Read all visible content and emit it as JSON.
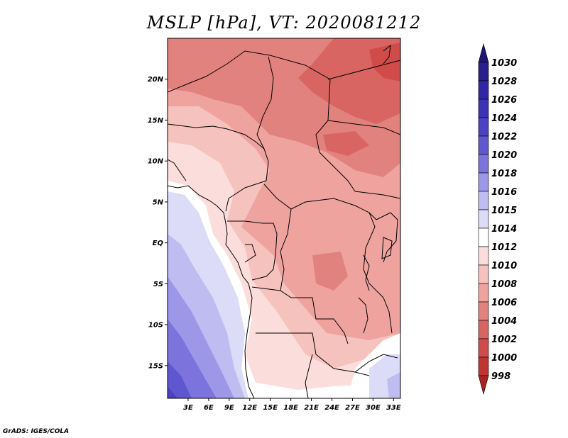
{
  "title": "MSLP [hPa], VT: 2020081212",
  "credit": "GrADS: IGES/COLA",
  "map": {
    "lon_range": [
      0,
      34
    ],
    "lat_range": [
      -19,
      25
    ],
    "lat_ticks": [
      {
        "value": 20,
        "label": "20N"
      },
      {
        "value": 15,
        "label": "15N"
      },
      {
        "value": 10,
        "label": "10N"
      },
      {
        "value": 5,
        "label": "5N"
      },
      {
        "value": 0,
        "label": "EQ"
      },
      {
        "value": -5,
        "label": "5S"
      },
      {
        "value": -10,
        "label": "10S"
      },
      {
        "value": -15,
        "label": "15S"
      }
    ],
    "lon_ticks": [
      {
        "value": 3,
        "label": "3E"
      },
      {
        "value": 6,
        "label": "6E"
      },
      {
        "value": 9,
        "label": "9E"
      },
      {
        "value": 12,
        "label": "12E"
      },
      {
        "value": 15,
        "label": "15E"
      },
      {
        "value": 18,
        "label": "18E"
      },
      {
        "value": 21,
        "label": "21E"
      },
      {
        "value": 24,
        "label": "24E"
      },
      {
        "value": 27,
        "label": "27E"
      },
      {
        "value": 30,
        "label": "30E"
      },
      {
        "value": 33,
        "label": "33E"
      }
    ]
  },
  "colorbar": {
    "levels": [
      {
        "label": "1030",
        "color": "#2a1e8c"
      },
      {
        "label": "1028",
        "color": "#3326a6"
      },
      {
        "label": "1026",
        "color": "#3d31b5"
      },
      {
        "label": "1024",
        "color": "#4b41c2"
      },
      {
        "label": "1022",
        "color": "#5f57cf"
      },
      {
        "label": "1020",
        "color": "#7c74dc"
      },
      {
        "label": "1018",
        "color": "#9d97e8"
      },
      {
        "label": "1016",
        "color": "#bfbcf1"
      },
      {
        "label": "1015",
        "color": "#dcdbf8"
      },
      {
        "label": "1014",
        "color": "#ffffff"
      },
      {
        "label": "1012",
        "color": "#fbdedc"
      },
      {
        "label": "1010",
        "color": "#f6c2be"
      },
      {
        "label": "1008",
        "color": "#eea39f"
      },
      {
        "label": "1006",
        "color": "#e2827f"
      },
      {
        "label": "1004",
        "color": "#d96563"
      },
      {
        "label": "1002",
        "color": "#d14b4a"
      },
      {
        "label": "1000",
        "color": "#bf3532"
      },
      {
        "label": "998",
        "color": "#a82420"
      }
    ],
    "top_color": "#1e147a",
    "bottom_color": "#a82420"
  }
}
